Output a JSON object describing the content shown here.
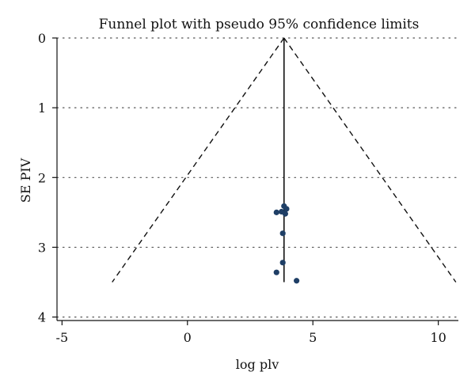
{
  "chart_data": {
    "type": "scatter",
    "title": "Funnel plot with pseudo 95% confidence limits",
    "xlabel": "log plv",
    "ylabel": "SE PIV",
    "xlim": [
      -5.2,
      10.8
    ],
    "ylim": [
      4.05,
      0
    ],
    "y_axis_inverted": true,
    "x_ticks": [
      -5,
      0,
      5,
      10
    ],
    "x_tick_labels": [
      "-5",
      "0",
      "5",
      "10"
    ],
    "y_ticks": [
      0,
      1,
      2,
      3,
      4
    ],
    "y_tick_labels": [
      "0",
      "1",
      "2",
      "3",
      "4"
    ],
    "grid": "horizontal dotted",
    "legend": "none",
    "pooled_estimate": 3.85,
    "pooled_line": {
      "x": 3.85,
      "y_range": [
        0,
        3.5
      ]
    },
    "confidence_limits": {
      "style": "dashed",
      "apex": {
        "x": 3.85,
        "y": 0
      },
      "left_end": {
        "x": -3.0,
        "y": 3.5
      },
      "right_end": {
        "x": 10.7,
        "y": 3.5
      }
    },
    "points": [
      {
        "x": 3.85,
        "y": 2.41
      },
      {
        "x": 3.95,
        "y": 2.45
      },
      {
        "x": 3.55,
        "y": 2.5
      },
      {
        "x": 3.75,
        "y": 2.49
      },
      {
        "x": 3.9,
        "y": 2.52
      },
      {
        "x": 3.8,
        "y": 2.8
      },
      {
        "x": 3.8,
        "y": 3.22
      },
      {
        "x": 3.55,
        "y": 3.36
      },
      {
        "x": 4.35,
        "y": 3.48
      }
    ],
    "point_color": "#1f3f66",
    "line_color": "#111111"
  }
}
